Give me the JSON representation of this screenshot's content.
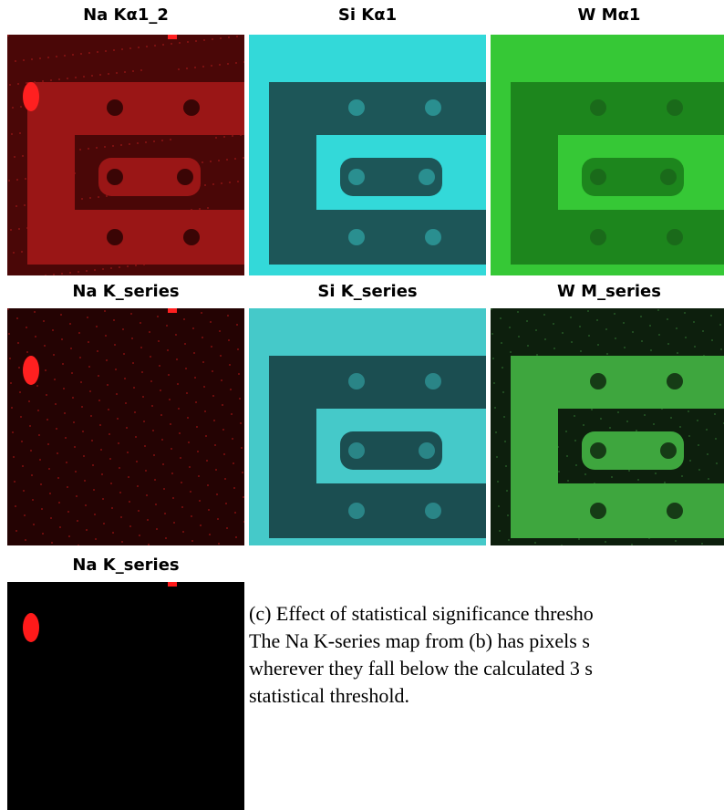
{
  "panels": [
    {
      "label": "Na Kα1_2"
    },
    {
      "label": "Si Kα1"
    },
    {
      "label": "W Mα1"
    },
    {
      "label": "Na K_series"
    },
    {
      "label": "Si K_series"
    },
    {
      "label": "W M_series"
    },
    {
      "label": "Na K_series"
    }
  ],
  "caption": {
    "lines": [
      "(c) Effect of statistical significance thresho",
      "The Na K-series map from (b) has pixels s",
      "wherever they fall below the calculated 3 s",
      "statistical threshold."
    ]
  }
}
